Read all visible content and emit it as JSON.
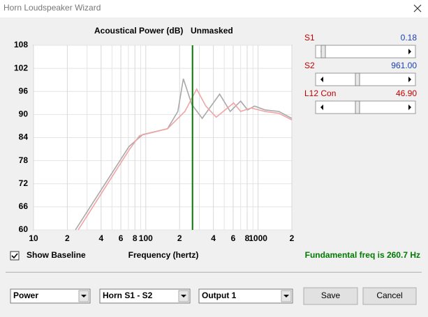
{
  "window": {
    "title": "Horn Loudspeaker Wizard"
  },
  "chart_data": {
    "type": "line",
    "title": "Acoustical Power (dB)",
    "subtitle": "Unmasked",
    "x_label": "Frequency (hertz)",
    "xscale": "log",
    "xlim": [
      10,
      2000
    ],
    "xticks": [
      10,
      {
        "value": 20,
        "label": "2"
      },
      {
        "value": 40,
        "label": "4"
      },
      {
        "value": 60,
        "label": "6"
      },
      {
        "value": 80,
        "label": "8"
      },
      100,
      {
        "value": 200,
        "label": "2"
      },
      {
        "value": 400,
        "label": "4"
      },
      {
        "value": 600,
        "label": "6"
      },
      {
        "value": 800,
        "label": "8"
      },
      1000,
      {
        "value": 2000,
        "label": "2"
      }
    ],
    "minor_xticks": [
      30,
      50,
      70,
      90,
      300,
      500,
      700,
      900
    ],
    "ylim": [
      60,
      108
    ],
    "yticks": [
      60,
      66,
      72,
      78,
      84,
      90,
      96,
      102,
      108
    ],
    "grid": true,
    "series": [
      {
        "color": "#a9a9a9",
        "x": [
          23.6,
          71,
          94,
          156,
          193,
          216,
          257,
          318,
          455,
          565,
          700,
          807,
          931,
          1153,
          1535,
          2000
        ],
        "values": [
          60,
          81.7,
          84.8,
          86.3,
          90.8,
          99.3,
          92.6,
          89,
          95.3,
          90.8,
          93.5,
          91.2,
          92.2,
          91.2,
          90.8,
          89
        ]
      },
      {
        "color": "#f2a3a3",
        "x": [
          25,
          71,
          88,
          156,
          223,
          284,
          342,
          424,
          606,
          700,
          867,
          1153,
          1535,
          2000
        ],
        "values": [
          60,
          80.8,
          84.5,
          86.3,
          90.8,
          96.6,
          92.2,
          89.3,
          93,
          90.8,
          91.7,
          90.8,
          90.3,
          88.6
        ]
      }
    ],
    "marker": {
      "value": 260.7,
      "color": "#007a00"
    }
  },
  "sliders": [
    {
      "label": "S1",
      "value": "0.18",
      "value_color": "#1a3fb0"
    },
    {
      "label": "S2",
      "value": "961.00",
      "value_color": "#1a3fb0"
    },
    {
      "label": "L12  Con",
      "value": "46.90",
      "value_color": "#c00000"
    }
  ],
  "checkbox": {
    "label": "Show Baseline",
    "checked": true
  },
  "status": "Fundamental freq is 260.7 Hz",
  "dropdowns": [
    "Power",
    "Horn S1 - S2",
    "Output 1"
  ],
  "buttons": [
    "Save",
    "Cancel"
  ]
}
